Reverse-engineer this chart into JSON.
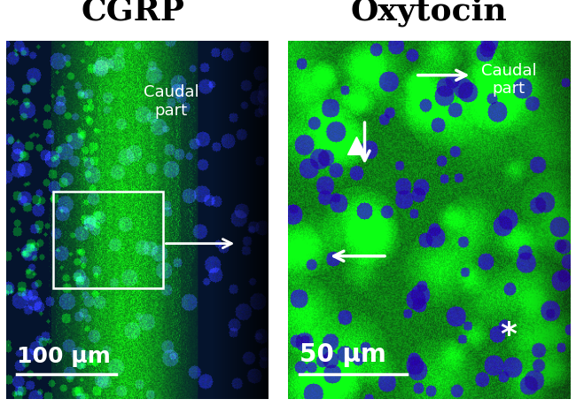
{
  "title_left": "CGRP",
  "title_right": "Oxytocin",
  "title_fontsize": 26,
  "label_color": "white",
  "scale_bar_left": "100 μm",
  "scale_bar_right": "50 μm",
  "scale_fontsize": 18,
  "annotation_fontsize": 16,
  "bg_color": "#ffffff",
  "caudal_part_text": "Caudal\npart",
  "left_panel": {
    "bg_green_base": 0.35,
    "fiber_color": [
      0.1,
      0.9,
      0.2
    ],
    "nucleus_color": [
      0.1,
      0.3,
      0.9
    ]
  },
  "right_panel": {
    "bg_green_base": 0.3,
    "cell_color": [
      0.1,
      0.85,
      0.15
    ],
    "nucleus_color": [
      0.1,
      0.3,
      0.9
    ]
  }
}
